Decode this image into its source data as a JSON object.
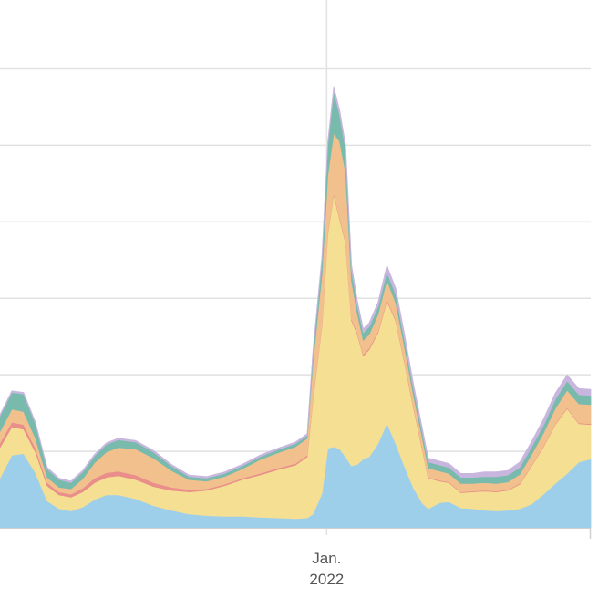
{
  "chart_data": {
    "type": "area",
    "stacked": true,
    "title": "",
    "xlabel": "",
    "ylabel": "",
    "legend": "none",
    "grid": "horizontal",
    "x_ticks": [
      {
        "line1": "Jan.",
        "line2": "2022",
        "t": 0.553
      }
    ],
    "x": [
      0.0,
      0.02,
      0.04,
      0.06,
      0.08,
      0.1,
      0.12,
      0.14,
      0.16,
      0.18,
      0.2,
      0.23,
      0.26,
      0.29,
      0.32,
      0.35,
      0.38,
      0.41,
      0.44,
      0.47,
      0.5,
      0.52,
      0.53,
      0.545,
      0.555,
      0.565,
      0.575,
      0.585,
      0.595,
      0.605,
      0.615,
      0.625,
      0.64,
      0.655,
      0.67,
      0.685,
      0.7,
      0.715,
      0.725,
      0.745,
      0.76,
      0.78,
      0.8,
      0.82,
      0.84,
      0.86,
      0.88,
      0.9,
      0.92,
      0.94,
      0.96,
      0.98,
      1.0
    ],
    "series": [
      {
        "color": "#9ecfea",
        "values": [
          0.065,
          0.095,
          0.097,
          0.072,
          0.035,
          0.025,
          0.022,
          0.027,
          0.037,
          0.043,
          0.043,
          0.038,
          0.029,
          0.023,
          0.018,
          0.016,
          0.015,
          0.015,
          0.014,
          0.013,
          0.012,
          0.013,
          0.018,
          0.045,
          0.104,
          0.106,
          0.103,
          0.093,
          0.081,
          0.083,
          0.09,
          0.093,
          0.11,
          0.137,
          0.11,
          0.08,
          0.052,
          0.032,
          0.025,
          0.033,
          0.034,
          0.026,
          0.025,
          0.023,
          0.022,
          0.023,
          0.025,
          0.031,
          0.044,
          0.058,
          0.071,
          0.086,
          0.09
        ]
      },
      {
        "color": "#f4df93",
        "values": [
          0.04,
          0.037,
          0.032,
          0.027,
          0.02,
          0.018,
          0.018,
          0.02,
          0.022,
          0.023,
          0.025,
          0.025,
          0.025,
          0.026,
          0.029,
          0.033,
          0.04,
          0.048,
          0.055,
          0.063,
          0.07,
          0.08,
          0.15,
          0.22,
          0.28,
          0.33,
          0.3,
          0.28,
          0.19,
          0.17,
          0.135,
          0.14,
          0.145,
          0.16,
          0.16,
          0.135,
          0.105,
          0.07,
          0.04,
          0.028,
          0.025,
          0.02,
          0.022,
          0.025,
          0.025,
          0.026,
          0.032,
          0.05,
          0.062,
          0.077,
          0.085,
          0.05,
          0.045
        ]
      },
      {
        "color": "#e98e8a",
        "values": [
          0.006,
          0.006,
          0.006,
          0.005,
          0.004,
          0.004,
          0.004,
          0.005,
          0.006,
          0.006,
          0.006,
          0.006,
          0.005,
          0.004,
          0.003,
          0.002,
          0.002,
          0.002,
          0.002,
          0.002,
          0.002,
          0.002,
          0.002,
          0.002,
          0.002,
          0.002,
          0.002,
          0.002,
          0.002,
          0.002,
          0.002,
          0.002,
          0.002,
          0.002,
          0.002,
          0.002,
          0.002,
          0.002,
          0.001,
          0.001,
          0.001,
          0.001,
          0.001,
          0.001,
          0.001,
          0.001,
          0.001,
          0.001,
          0.001,
          0.001,
          0.001,
          0.001,
          0.001
        ]
      },
      {
        "color": "#f1c08d",
        "values": [
          0.015,
          0.017,
          0.017,
          0.013,
          0.007,
          0.006,
          0.007,
          0.012,
          0.02,
          0.027,
          0.031,
          0.034,
          0.032,
          0.022,
          0.013,
          0.01,
          0.01,
          0.012,
          0.018,
          0.02,
          0.022,
          0.022,
          0.048,
          0.065,
          0.075,
          0.078,
          0.1,
          0.09,
          0.05,
          0.025,
          0.018,
          0.018,
          0.022,
          0.025,
          0.022,
          0.018,
          0.014,
          0.013,
          0.012,
          0.012,
          0.011,
          0.011,
          0.01,
          0.01,
          0.01,
          0.01,
          0.012,
          0.014,
          0.017,
          0.02,
          0.023,
          0.025,
          0.025
        ]
      },
      {
        "color": "#78bbad",
        "values": [
          0.02,
          0.022,
          0.023,
          0.019,
          0.011,
          0.01,
          0.008,
          0.009,
          0.009,
          0.01,
          0.01,
          0.009,
          0.008,
          0.006,
          0.004,
          0.004,
          0.004,
          0.004,
          0.004,
          0.004,
          0.004,
          0.004,
          0.012,
          0.02,
          0.04,
          0.055,
          0.035,
          0.03,
          0.015,
          0.011,
          0.01,
          0.01,
          0.01,
          0.011,
          0.011,
          0.01,
          0.009,
          0.008,
          0.008,
          0.008,
          0.008,
          0.008,
          0.008,
          0.008,
          0.009,
          0.009,
          0.009,
          0.01,
          0.01,
          0.012,
          0.012,
          0.012,
          0.012
        ]
      },
      {
        "color": "#c8b6de",
        "values": [
          0.002,
          0.002,
          0.002,
          0.002,
          0.002,
          0.002,
          0.002,
          0.002,
          0.002,
          0.002,
          0.002,
          0.002,
          0.002,
          0.002,
          0.002,
          0.002,
          0.002,
          0.002,
          0.002,
          0.002,
          0.002,
          0.002,
          0.003,
          0.003,
          0.004,
          0.006,
          0.006,
          0.006,
          0.006,
          0.006,
          0.005,
          0.005,
          0.006,
          0.008,
          0.008,
          0.007,
          0.006,
          0.005,
          0.005,
          0.005,
          0.005,
          0.005,
          0.005,
          0.006,
          0.006,
          0.006,
          0.007,
          0.007,
          0.008,
          0.008,
          0.008,
          0.008,
          0.008
        ]
      }
    ],
    "y_gridlines": [
      0.1,
      0.2,
      0.3,
      0.4,
      0.5,
      0.6
    ],
    "ylim": [
      0,
      0.69
    ]
  }
}
